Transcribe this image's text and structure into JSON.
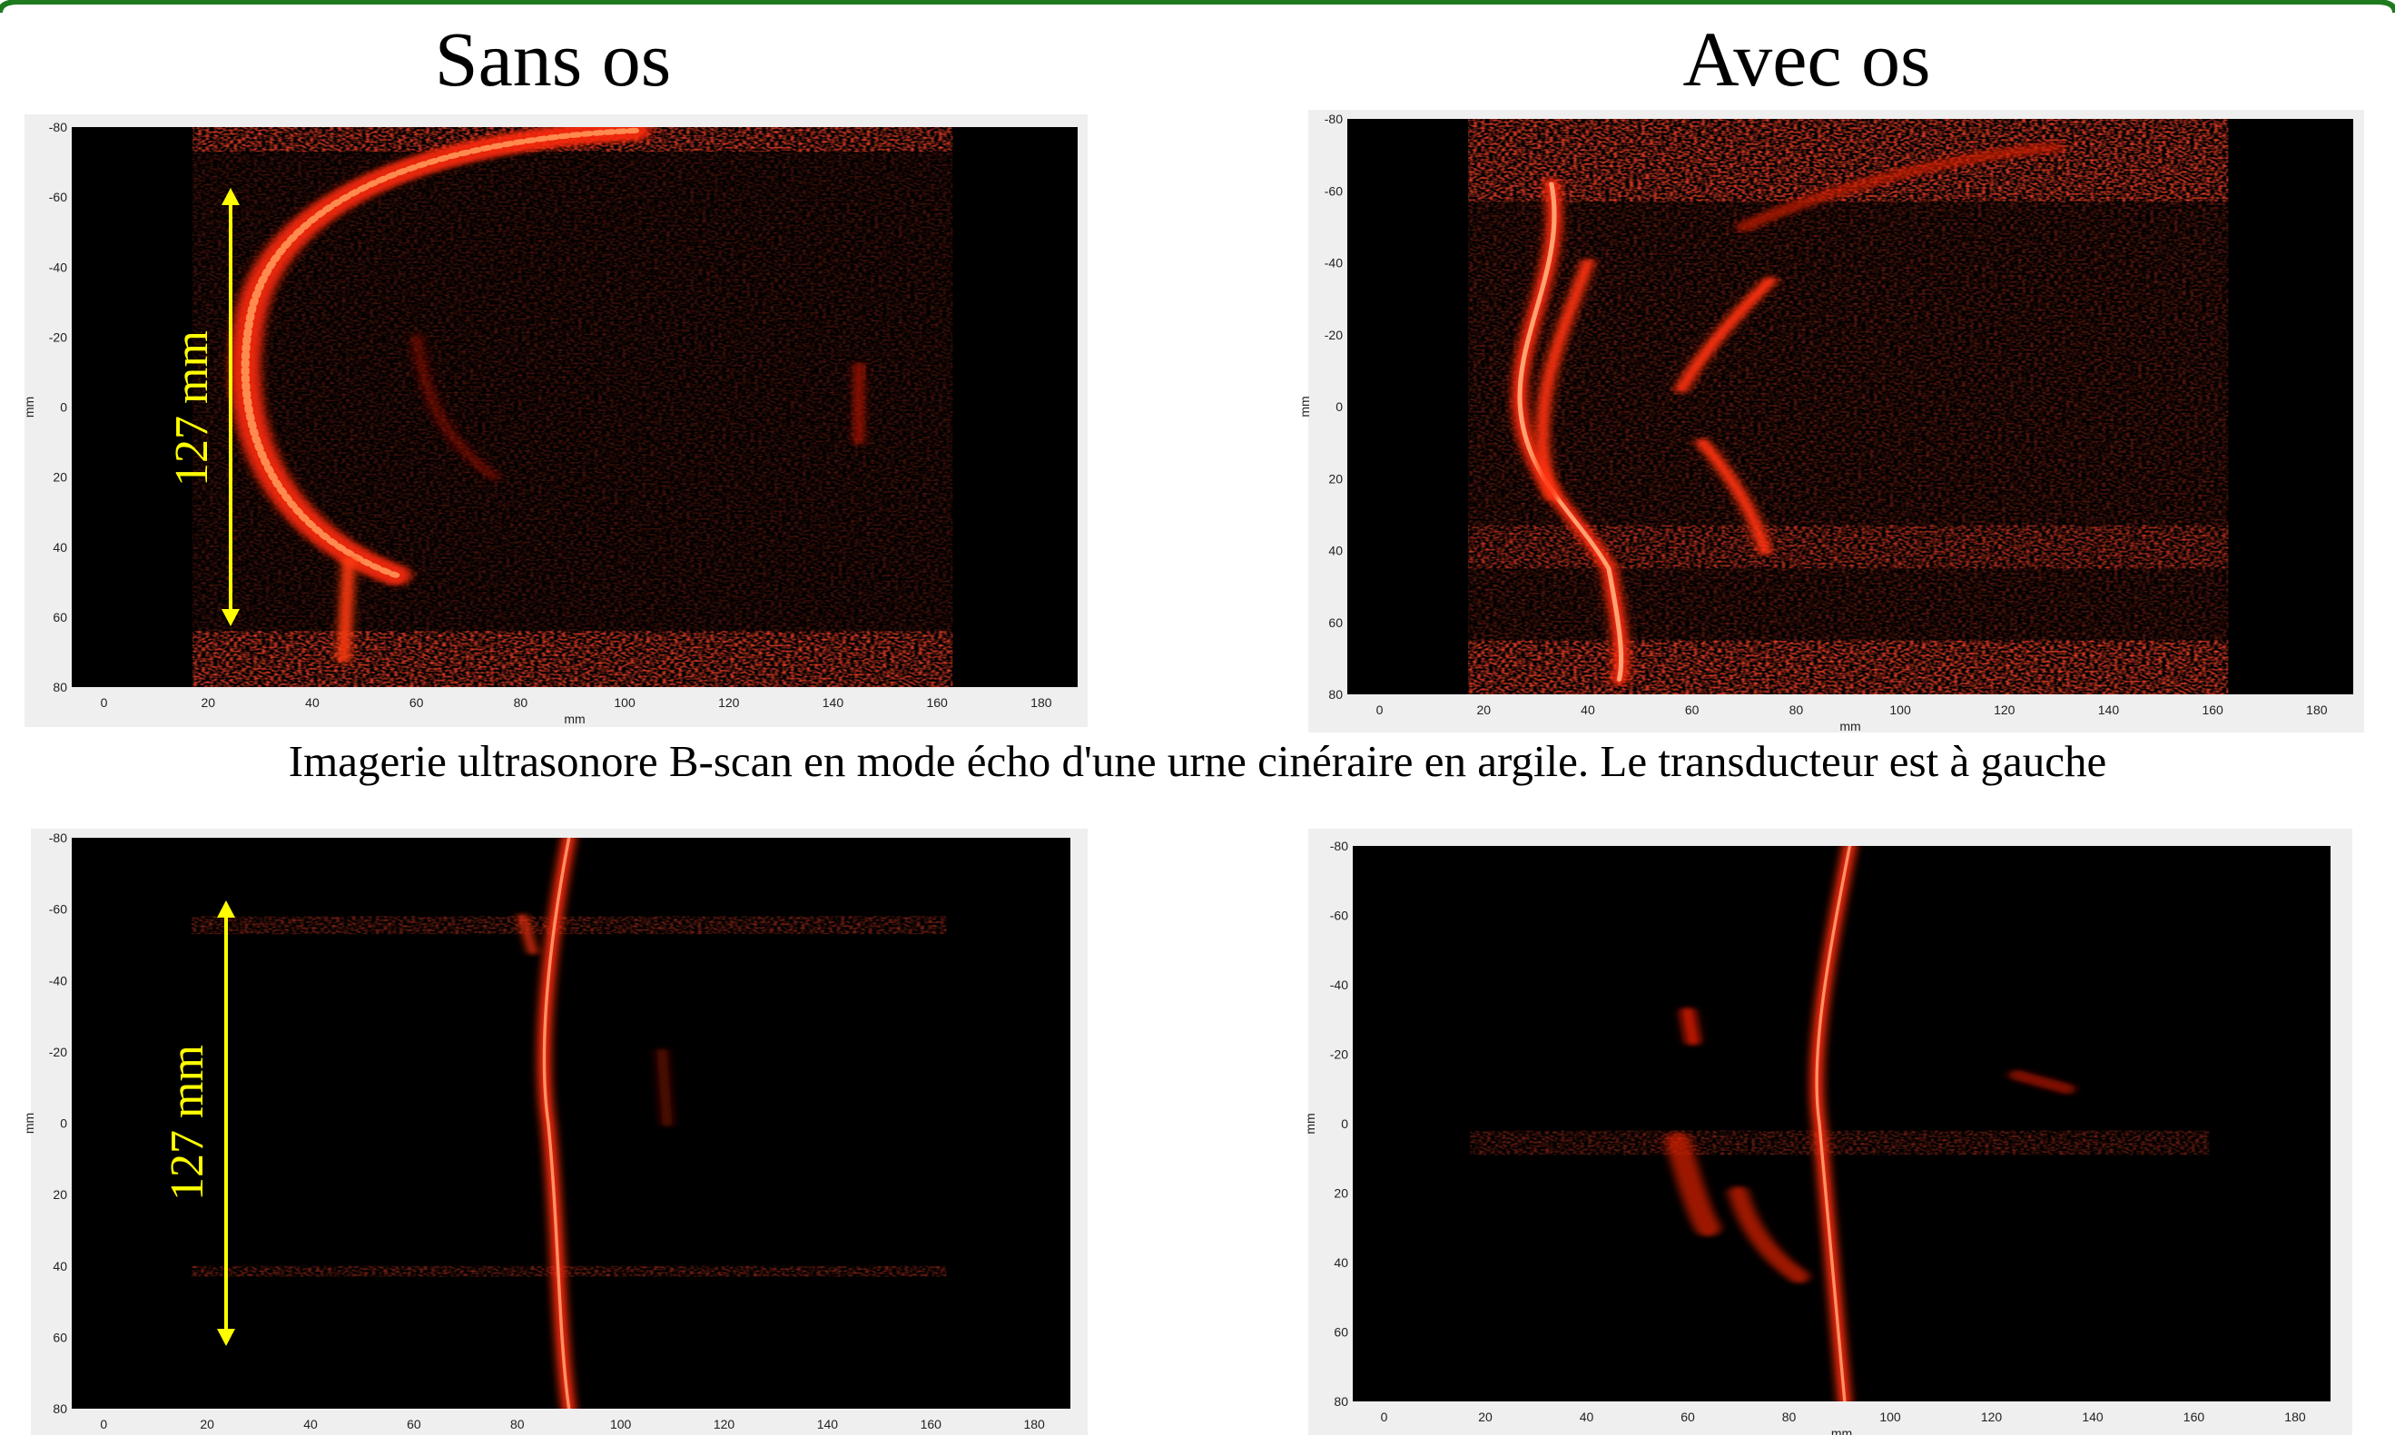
{
  "titles": [
    "Sans os",
    "Avec os"
  ],
  "caption": "Imagerie ultrasonore B-scan en mode écho d'une urne cinéraire en argile. Le transducteur est à gauche",
  "annotations": [
    "127 mm",
    "127 mm"
  ],
  "panels": [
    {
      "xlabel": "mm",
      "ylabel": "mm",
      "xticks": [
        0,
        20,
        40,
        60,
        80,
        100,
        120,
        140,
        160,
        180
      ],
      "yticks": [
        -80,
        -60,
        -40,
        -20,
        0,
        20,
        40,
        60,
        80
      ]
    },
    {
      "xlabel": "mm",
      "ylabel": "mm",
      "xticks": [
        0,
        20,
        40,
        60,
        80,
        100,
        120,
        140,
        160,
        180
      ],
      "yticks": [
        -80,
        -60,
        -40,
        -20,
        0,
        20,
        40,
        60,
        80
      ]
    },
    {
      "xlabel": "mm",
      "ylabel": "mm",
      "xticks": [
        0,
        20,
        40,
        60,
        80,
        100,
        120,
        140,
        160,
        180
      ],
      "yticks": [
        -80,
        -60,
        -40,
        -20,
        0,
        20,
        40,
        60,
        80
      ]
    },
    {
      "xlabel": "mm",
      "ylabel": "mm",
      "xticks": [
        0,
        20,
        40,
        60,
        80,
        100,
        120,
        140,
        160,
        180
      ],
      "yticks": [
        -80,
        -60,
        -40,
        -20,
        0,
        20,
        40,
        60,
        80
      ]
    }
  ]
}
